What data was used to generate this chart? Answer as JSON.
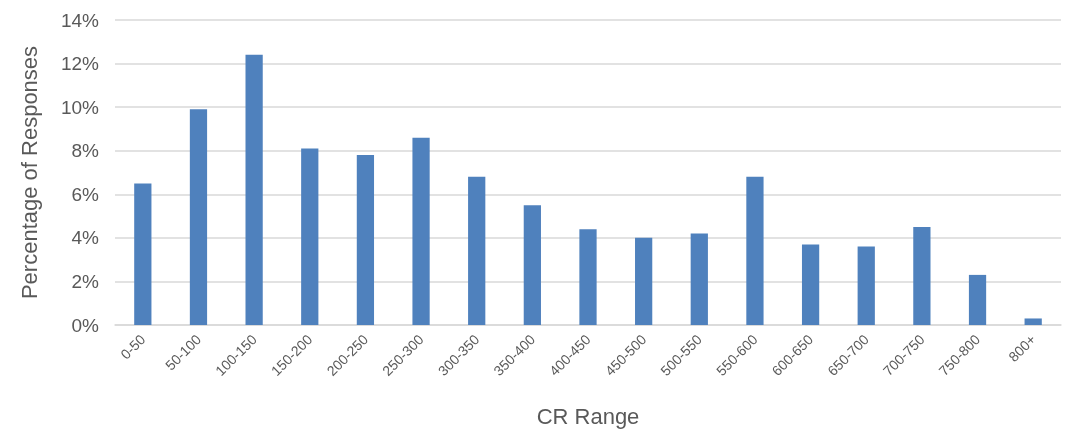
{
  "chart_data": {
    "type": "bar",
    "xlabel": "CR Range",
    "ylabel": "Percentage of Responses",
    "categories": [
      "0-50",
      "50-100",
      "100-150",
      "150-200",
      "200-250",
      "250-300",
      "300-350",
      "350-400",
      "400-450",
      "450-500",
      "500-550",
      "550-600",
      "600-650",
      "650-700",
      "700-750",
      "750-800",
      "800+"
    ],
    "values": [
      6.5,
      9.9,
      12.4,
      8.1,
      7.8,
      8.6,
      6.8,
      5.5,
      4.4,
      4.0,
      4.2,
      6.8,
      3.7,
      3.6,
      4.5,
      2.3,
      0.3
    ],
    "color": "#4f81bd",
    "ylim": [
      0,
      14
    ],
    "yticks": [
      {
        "value": 0,
        "label": "0%"
      },
      {
        "value": 2,
        "label": "2%"
      },
      {
        "value": 4,
        "label": "4%"
      },
      {
        "value": 6,
        "label": "6%"
      },
      {
        "value": 8,
        "label": "8%"
      },
      {
        "value": 10,
        "label": "10%"
      },
      {
        "value": 12,
        "label": "12%"
      },
      {
        "value": 14,
        "label": "14%"
      }
    ],
    "grid": "y"
  }
}
